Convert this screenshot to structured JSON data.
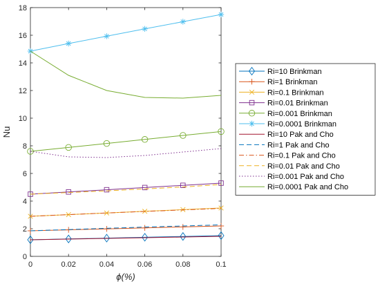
{
  "chart_data": {
    "type": "line",
    "title": "",
    "xlabel": "ϕ(%)",
    "ylabel": "Nu",
    "xlim": [
      0,
      0.1
    ],
    "ylim": [
      0,
      18
    ],
    "xticks": [
      0,
      0.02,
      0.04,
      0.06,
      0.08,
      0.1
    ],
    "yticks": [
      0,
      2,
      4,
      6,
      8,
      10,
      12,
      14,
      16,
      18
    ],
    "xtick_labels": [
      "0",
      "0.02",
      "0.04",
      "0.06",
      "0.08",
      "0.1"
    ],
    "ytick_labels": [
      "0",
      "2",
      "4",
      "6",
      "8",
      "10",
      "12",
      "14",
      "16",
      "18"
    ],
    "grid": false,
    "legend_position": "outside-right",
    "x": [
      0,
      0.02,
      0.04,
      0.06,
      0.08,
      0.1
    ],
    "series": [
      {
        "name": "Ri=10 Brinkman",
        "values": [
          1.2,
          1.26,
          1.32,
          1.38,
          1.44,
          1.5
        ],
        "color": "#0072BD",
        "dash": "solid",
        "marker": "diamond"
      },
      {
        "name": "Ri=1 Brinkman",
        "values": [
          1.85,
          1.92,
          1.99,
          2.06,
          2.13,
          2.2
        ],
        "color": "#D95319",
        "dash": "solid",
        "marker": "plus"
      },
      {
        "name": "Ri=0.1 Brinkman",
        "values": [
          2.9,
          3.02,
          3.14,
          3.26,
          3.38,
          3.5
        ],
        "color": "#EDB120",
        "dash": "solid",
        "marker": "x"
      },
      {
        "name": "Ri=0.01 Brinkman",
        "values": [
          4.5,
          4.66,
          4.82,
          4.98,
          5.14,
          5.3
        ],
        "color": "#7E2F8E",
        "dash": "solid",
        "marker": "square"
      },
      {
        "name": "Ri=0.001 Brinkman",
        "values": [
          7.6,
          7.88,
          8.17,
          8.46,
          8.75,
          9.03
        ],
        "color": "#77AC30",
        "dash": "solid",
        "marker": "circle"
      },
      {
        "name": "Ri=0.0001 Brinkman",
        "values": [
          14.85,
          15.4,
          15.93,
          16.46,
          16.98,
          17.5
        ],
        "color": "#4DBEEE",
        "dash": "solid",
        "marker": "asterisk"
      },
      {
        "name": "Ri=10 Pak and Cho",
        "values": [
          1.2,
          1.25,
          1.3,
          1.35,
          1.4,
          1.45
        ],
        "color": "#A2142F",
        "dash": "solid",
        "marker": "none"
      },
      {
        "name": "Ri=1 Pak and Cho",
        "values": [
          1.85,
          1.94,
          2.03,
          2.12,
          2.2,
          2.28
        ],
        "color": "#0072BD",
        "dash": "dashed",
        "marker": "none"
      },
      {
        "name": "Ri=0.1 Pak and Cho",
        "values": [
          2.9,
          3.02,
          3.14,
          3.25,
          3.36,
          3.47
        ],
        "color": "#D95319",
        "dash": "dashdot",
        "marker": "none"
      },
      {
        "name": "Ri=0.01 Pak and Cho",
        "values": [
          4.5,
          4.62,
          4.74,
          4.88,
          5.02,
          5.2
        ],
        "color": "#EDB120",
        "dash": "dashed",
        "marker": "none"
      },
      {
        "name": "Ri=0.001 Pak and Cho",
        "values": [
          7.6,
          7.2,
          7.15,
          7.3,
          7.55,
          7.8
        ],
        "color": "#7E2F8E",
        "dash": "dotted",
        "marker": "none"
      },
      {
        "name": "Ri=0.0001 Pak and Cho",
        "values": [
          14.85,
          13.1,
          12.0,
          11.5,
          11.45,
          11.65
        ],
        "color": "#77AC30",
        "dash": "solid",
        "marker": "none"
      }
    ]
  }
}
